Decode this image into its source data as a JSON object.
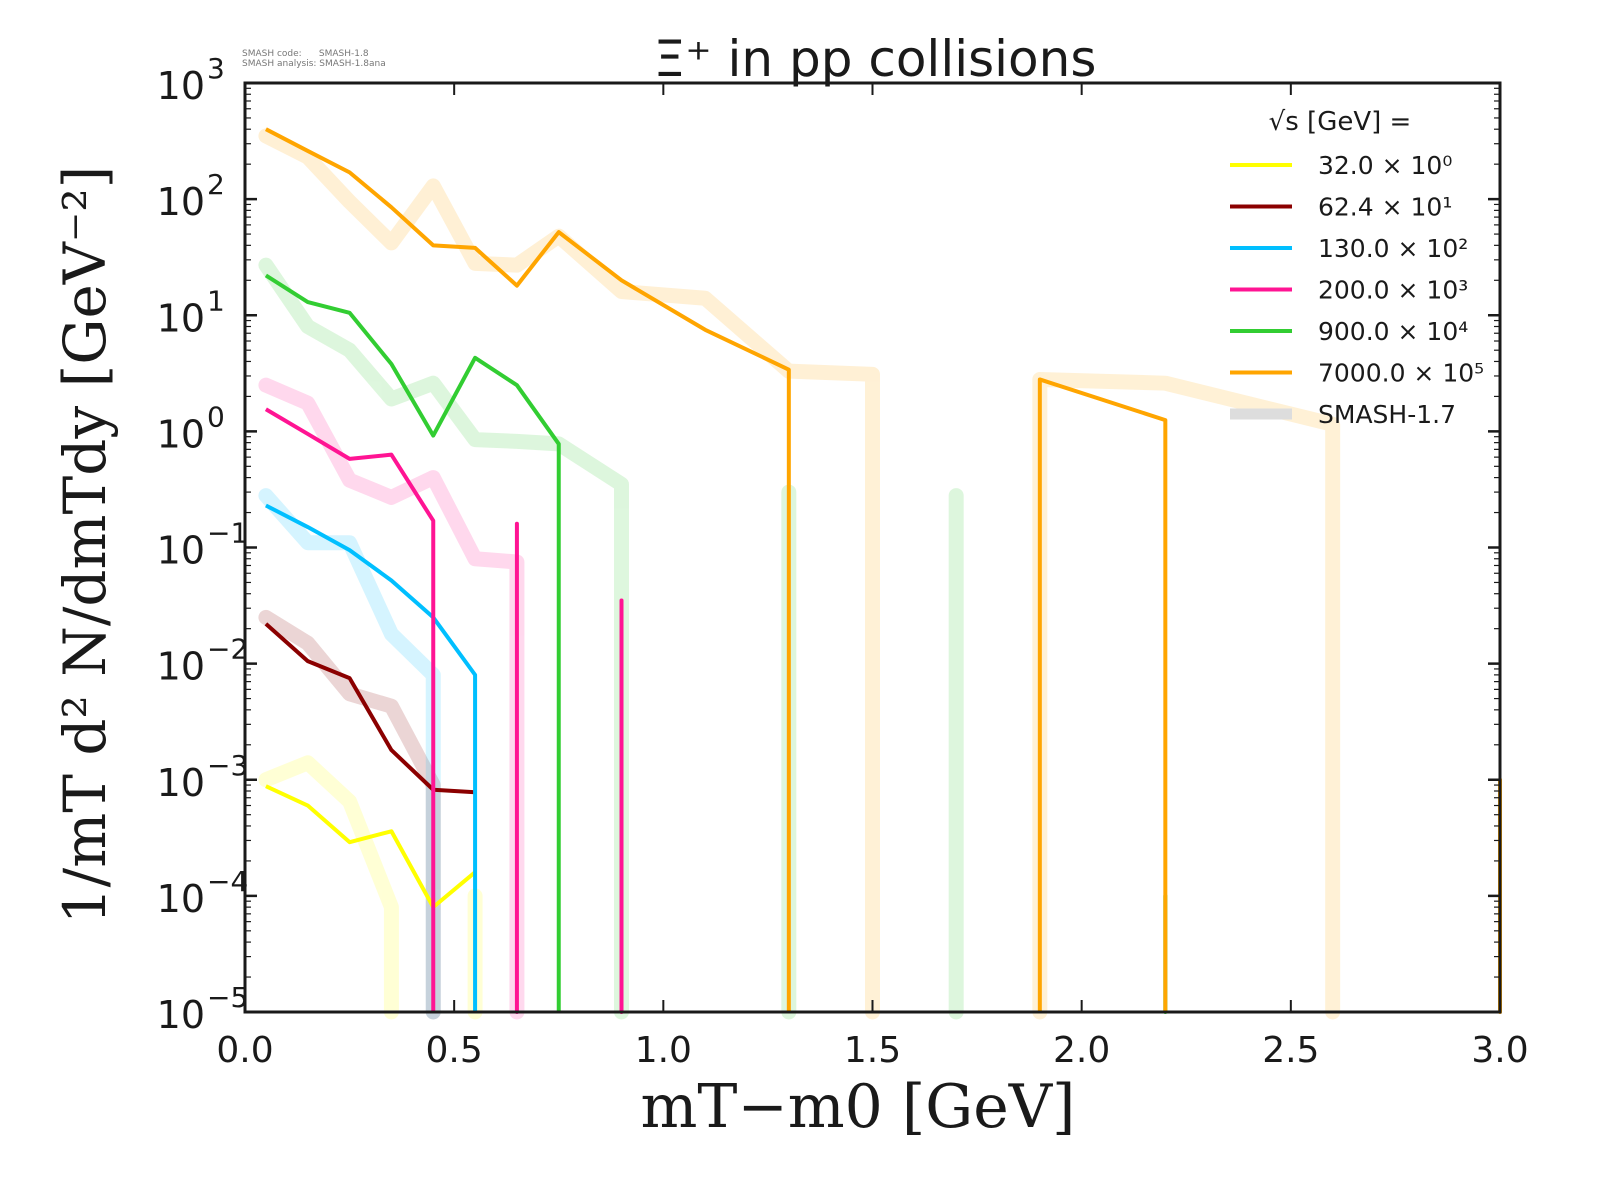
{
  "meta": {
    "code_line": "SMASH code:      SMASH-1.8",
    "analysis_line": "SMASH analysis: SMASH-1.8ana"
  },
  "chart_data": {
    "type": "line",
    "title": "Ξ⁺ in pp collisions",
    "xlabel": "mT−m0 [GeV]",
    "ylabel": "1/mT d² N/dmTdy [GeV⁻²]",
    "xlim": [
      0.0,
      3.0
    ],
    "ylim": [
      1e-05,
      1000.0
    ],
    "yscale": "log",
    "grid": false,
    "x_ticks": [
      "0.0",
      "0.5",
      "1.0",
      "1.5",
      "2.0",
      "2.5",
      "3.0"
    ],
    "y_ticks": [
      {
        "base": "10",
        "exp": "3"
      },
      {
        "base": "10",
        "exp": "2"
      },
      {
        "base": "10",
        "exp": "1"
      },
      {
        "base": "10",
        "exp": "0"
      },
      {
        "base": "10",
        "exp": "−1"
      },
      {
        "base": "10",
        "exp": "−2"
      },
      {
        "base": "10",
        "exp": "−3"
      },
      {
        "base": "10",
        "exp": "−4"
      },
      {
        "base": "10",
        "exp": "−5"
      }
    ],
    "legend": {
      "placement": "top-right",
      "title": "√s  [GeV] =",
      "entries": [
        {
          "label": "32.0 × 10⁰",
          "color": "#ffff00"
        },
        {
          "label": "62.4 × 10¹",
          "color": "#8b0000"
        },
        {
          "label": "130.0 × 10²",
          "color": "#00bfff"
        },
        {
          "label": "200.0 × 10³",
          "color": "#ff1493"
        },
        {
          "label": "900.0 × 10⁴",
          "color": "#32cd32"
        },
        {
          "label": "7000.0 × 10⁵",
          "color": "#ffa500"
        },
        {
          "label": "SMASH-1.7",
          "color": "#dddddd",
          "ghost": true
        }
      ]
    },
    "series": [
      {
        "name": "32.0 × 10⁰",
        "color": "#ffff00",
        "version": "SMASH-1.8",
        "x": [
          0.05,
          0.15,
          0.25,
          0.35,
          0.45,
          0.55
        ],
        "y": [
          0.00088,
          0.0006,
          0.00029,
          0.00036,
          8e-05,
          0.00016
        ],
        "drops": []
      },
      {
        "name": "62.4 × 10¹",
        "color": "#8b0000",
        "version": "SMASH-1.8",
        "x": [
          0.05,
          0.15,
          0.25,
          0.35,
          0.45,
          0.55
        ],
        "y": [
          0.022,
          0.0105,
          0.0075,
          0.0018,
          0.00082,
          0.00078
        ],
        "drops": []
      },
      {
        "name": "130.0 × 10²",
        "color": "#00bfff",
        "version": "SMASH-1.8",
        "x": [
          0.05,
          0.15,
          0.25,
          0.35,
          0.45,
          0.55
        ],
        "y": [
          0.23,
          0.15,
          0.095,
          0.052,
          0.025,
          0.008
        ],
        "drops": [
          0.55
        ]
      },
      {
        "name": "200.0 × 10³",
        "color": "#ff1493",
        "version": "SMASH-1.8",
        "x": [
          0.05,
          0.15,
          0.25,
          0.35,
          0.45
        ],
        "y": [
          1.55,
          0.95,
          0.58,
          0.63,
          0.17
        ],
        "drops": [
          0.45
        ],
        "spikes": [
          {
            "x": 0.65,
            "y": 0.16
          },
          {
            "x": 0.9,
            "y": 0.035
          }
        ]
      },
      {
        "name": "900.0 × 10⁴",
        "color": "#32cd32",
        "version": "SMASH-1.8",
        "x": [
          0.05,
          0.15,
          0.25,
          0.35,
          0.45,
          0.55,
          0.65,
          0.75
        ],
        "y": [
          22,
          13,
          10.5,
          3.8,
          0.92,
          4.3,
          2.5,
          0.78
        ],
        "drops": [
          0.75
        ],
        "spikes": [
          {
            "x": 2.2,
            "y": 0.0001
          }
        ]
      },
      {
        "name": "7000.0 × 10⁵",
        "color": "#ffa500",
        "version": "SMASH-1.8",
        "x": [
          0.05,
          0.15,
          0.25,
          0.35,
          0.45,
          0.55,
          0.65,
          0.75,
          0.9,
          1.1,
          1.3
        ],
        "y": [
          400,
          260,
          170,
          85,
          40,
          38,
          18,
          52,
          20,
          7.5,
          3.4
        ],
        "drops": [
          1.3
        ],
        "segments": [
          {
            "x": [
              1.9,
              2.2
            ],
            "y": [
              2.8,
              1.25
            ]
          }
        ],
        "spikes": [
          {
            "x": 3.0,
            "y": 0.001
          }
        ]
      },
      {
        "name": "32.0 × 10⁰ (SMASH-1.7)",
        "color": "#ffff00",
        "version": "SMASH-1.7",
        "x": [
          0.05,
          0.15,
          0.25,
          0.35
        ],
        "y": [
          0.001,
          0.0014,
          0.00065,
          8e-05
        ],
        "drops": [
          0.35
        ],
        "spikes": [
          {
            "x": 0.55,
            "y": 0.0001
          }
        ]
      },
      {
        "name": "62.4 × 10¹ (SMASH-1.7)",
        "color": "#8b0000",
        "version": "SMASH-1.7",
        "x": [
          0.05,
          0.15,
          0.25,
          0.35,
          0.45
        ],
        "y": [
          0.025,
          0.015,
          0.0055,
          0.0043,
          0.0009
        ],
        "drops": [
          0.45
        ]
      },
      {
        "name": "130.0 × 10² (SMASH-1.7)",
        "color": "#00bfff",
        "version": "SMASH-1.7",
        "x": [
          0.05,
          0.15,
          0.25,
          0.35,
          0.45
        ],
        "y": [
          0.28,
          0.11,
          0.11,
          0.018,
          0.008
        ],
        "drops": [
          0.45
        ]
      },
      {
        "name": "200.0 × 10³ (SMASH-1.7)",
        "color": "#ff1493",
        "version": "SMASH-1.7",
        "x": [
          0.05,
          0.15,
          0.25,
          0.35,
          0.45,
          0.55,
          0.65
        ],
        "y": [
          2.5,
          1.75,
          0.38,
          0.27,
          0.4,
          0.08,
          0.075
        ],
        "drops": [
          0.65
        ]
      },
      {
        "name": "900.0 × 10⁴ (SMASH-1.7)",
        "color": "#32cd32",
        "version": "SMASH-1.7",
        "x": [
          0.05,
          0.15,
          0.25,
          0.35,
          0.45,
          0.55,
          0.65,
          0.75,
          0.9
        ],
        "y": [
          27,
          8,
          5,
          1.9,
          2.6,
          0.85,
          0.82,
          0.78,
          0.35
        ],
        "drops": [
          0.9
        ],
        "spikes": [
          {
            "x": 1.3,
            "y": 0.3
          },
          {
            "x": 1.7,
            "y": 0.28
          }
        ]
      },
      {
        "name": "7000.0 × 10⁵ (SMASH-1.7)",
        "color": "#ffa500",
        "version": "SMASH-1.7",
        "x": [
          0.05,
          0.15,
          0.25,
          0.35,
          0.45,
          0.55,
          0.65,
          0.75,
          0.9,
          1.1,
          1.3,
          1.5
        ],
        "y": [
          350,
          230,
          95,
          42,
          130,
          28,
          27,
          48,
          16,
          14,
          3.3,
          3.1
        ],
        "drops": [
          1.5
        ],
        "segments": [
          {
            "x": [
              1.9,
              2.2,
              2.6
            ],
            "y": [
              2.8,
              2.6,
              1.15
            ]
          }
        ]
      }
    ]
  }
}
